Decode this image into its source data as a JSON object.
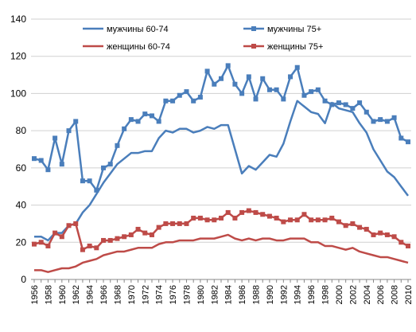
{
  "chart_data": {
    "type": "line",
    "title": "",
    "xlabel": "",
    "ylabel": "",
    "ylim": [
      0,
      140
    ],
    "yticks": [
      0,
      20,
      40,
      60,
      80,
      100,
      120,
      140
    ],
    "xticks": [
      "1956",
      "1958",
      "1960",
      "1962",
      "1964",
      "1966",
      "1968",
      "1970",
      "1972",
      "1974",
      "1976",
      "1978",
      "1980",
      "1982",
      "1984",
      "1986",
      "1988",
      "1990",
      "1992",
      "1994",
      "1996",
      "1998",
      "2000",
      "2002",
      "2004",
      "2006",
      "2008",
      "2010"
    ],
    "grid": "horizontal",
    "legend_position": "top",
    "x": [
      1956,
      1957,
      1958,
      1959,
      1960,
      1961,
      1962,
      1963,
      1964,
      1965,
      1966,
      1967,
      1968,
      1969,
      1970,
      1971,
      1972,
      1973,
      1974,
      1975,
      1976,
      1977,
      1978,
      1979,
      1980,
      1981,
      1982,
      1983,
      1984,
      1985,
      1986,
      1987,
      1988,
      1989,
      1990,
      1991,
      1992,
      1993,
      1994,
      1995,
      1996,
      1997,
      1998,
      1999,
      2000,
      2001,
      2002,
      2003,
      2004,
      2005,
      2006,
      2007,
      2008,
      2009,
      2010
    ],
    "series": [
      {
        "name": "мужчины 60-74",
        "color": "#4a7ebb",
        "marker": "none",
        "values": [
          23,
          23,
          21,
          25,
          25,
          29,
          30,
          36,
          40,
          46,
          52,
          57,
          62,
          65,
          68,
          68,
          69,
          69,
          76,
          80,
          79,
          81,
          81,
          79,
          80,
          82,
          81,
          83,
          83,
          70,
          57,
          61,
          59,
          63,
          67,
          66,
          73,
          85,
          96,
          93,
          90,
          89,
          84,
          95,
          92,
          91,
          90,
          84,
          79,
          70,
          64,
          58,
          55,
          50,
          45
        ]
      },
      {
        "name": "мужчины 75+",
        "color": "#4a7ebb",
        "marker": "square",
        "values": [
          65,
          64,
          59,
          76,
          62,
          80,
          85,
          53,
          53,
          48,
          60,
          62,
          72,
          81,
          86,
          85,
          89,
          88,
          85,
          96,
          96,
          99,
          101,
          96,
          98,
          112,
          105,
          108,
          115,
          105,
          100,
          109,
          97,
          108,
          102,
          102,
          97,
          109,
          114,
          99,
          101,
          102,
          96,
          94,
          95,
          94,
          92,
          95,
          90,
          85,
          86,
          85,
          87,
          76,
          74
        ]
      },
      {
        "name": "женщины 60-74",
        "color": "#be4b48",
        "marker": "none",
        "values": [
          5,
          5,
          4,
          5,
          6,
          6,
          7,
          9,
          10,
          11,
          13,
          14,
          15,
          15,
          16,
          17,
          17,
          17,
          19,
          20,
          20,
          21,
          21,
          21,
          22,
          22,
          22,
          23,
          24,
          22,
          21,
          22,
          21,
          22,
          22,
          21,
          21,
          22,
          22,
          22,
          20,
          20,
          18,
          18,
          17,
          16,
          17,
          15,
          14,
          13,
          12,
          12,
          11,
          10,
          9
        ]
      },
      {
        "name": "женщины 75+",
        "color": "#be4b48",
        "marker": "square",
        "values": [
          19,
          20,
          18,
          25,
          23,
          29,
          30,
          16,
          18,
          17,
          21,
          21,
          22,
          23,
          24,
          27,
          25,
          24,
          28,
          30,
          30,
          30,
          30,
          33,
          33,
          32,
          32,
          33,
          36,
          33,
          36,
          37,
          36,
          35,
          34,
          33,
          31,
          32,
          32,
          35,
          32,
          32,
          32,
          33,
          31,
          29,
          30,
          28,
          27,
          24,
          25,
          24,
          23,
          20,
          18
        ]
      }
    ]
  }
}
